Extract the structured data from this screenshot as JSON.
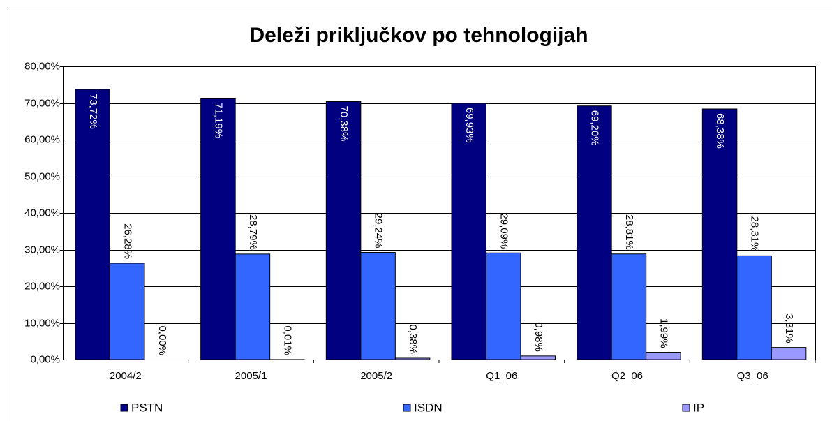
{
  "chart_data": {
    "type": "bar",
    "title": "Deleži priključkov po tehnologijah",
    "categories": [
      "2004/2",
      "2005/1",
      "2005/2",
      "Q1_06",
      "Q2_06",
      "Q3_06"
    ],
    "series": [
      {
        "name": "PSTN",
        "color": "#000080",
        "values": [
          73.72,
          71.19,
          70.38,
          69.93,
          69.2,
          68.38
        ],
        "value_labels": [
          "73,72%",
          "71,19%",
          "70,38%",
          "69,93%",
          "69,20%",
          "68,38%"
        ]
      },
      {
        "name": "ISDN",
        "color": "#3366ff",
        "values": [
          26.28,
          28.79,
          29.24,
          29.09,
          28.81,
          28.31
        ],
        "value_labels": [
          "26,28%",
          "28,79%",
          "29,24%",
          "29,09%",
          "28,81%",
          "28,31%"
        ]
      },
      {
        "name": "IP",
        "color": "#9999ff",
        "values": [
          0.0,
          0.01,
          0.38,
          0.98,
          1.99,
          3.31
        ],
        "value_labels": [
          "0,00%",
          "0,01%",
          "0,38%",
          "0,98%",
          "1,99%",
          "3,31%"
        ]
      }
    ],
    "ylim": [
      0,
      80
    ],
    "yticks": [
      {
        "value": 0,
        "label": "0,00%"
      },
      {
        "value": 10,
        "label": "10,00%"
      },
      {
        "value": 20,
        "label": "20,00%"
      },
      {
        "value": 30,
        "label": "30,00%"
      },
      {
        "value": 40,
        "label": "40,00%"
      },
      {
        "value": 50,
        "label": "50,00%"
      },
      {
        "value": 60,
        "label": "60,00%"
      },
      {
        "value": 70,
        "label": "70,00%"
      },
      {
        "value": 80,
        "label": "80,00%"
      }
    ],
    "grid": true,
    "legend": "bottom"
  }
}
